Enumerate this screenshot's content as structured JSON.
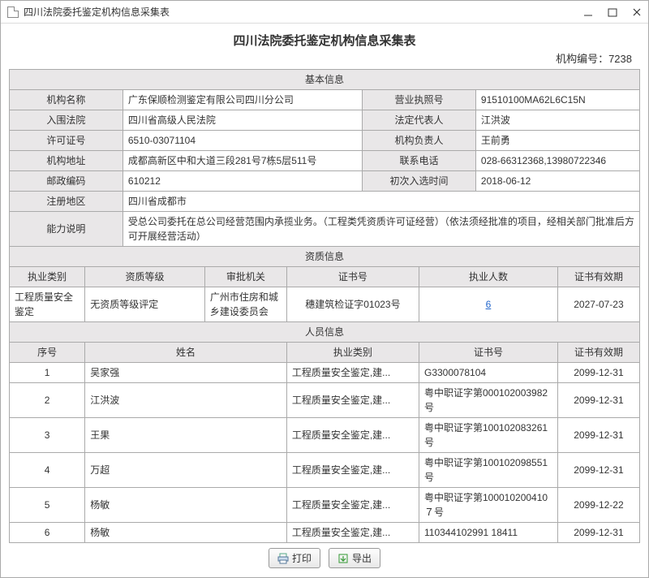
{
  "window": {
    "title": "四川法院委托鉴定机构信息采集表"
  },
  "header": {
    "main_title": "四川法院委托鉴定机构信息采集表",
    "org_code_label": "机构编号：",
    "org_code": "7238"
  },
  "sections": {
    "basic": "基本信息",
    "qual": "资质信息",
    "person": "人员信息"
  },
  "basic": {
    "org_name_label": "机构名称",
    "org_name": "广东保顺检测鉴定有限公司四川分公司",
    "license_no_label": "营业执照号",
    "license_no": "91510100MA62L6C15N",
    "court_label": "入围法院",
    "court": "四川省高级人民法院",
    "legal_rep_label": "法定代表人",
    "legal_rep": "江洪波",
    "permit_no_label": "许可证号",
    "permit_no": "6510-03071104",
    "org_head_label": "机构负责人",
    "org_head": "王前勇",
    "address_label": "机构地址",
    "address": "成都高新区中和大道三段281号7栋5层511号",
    "phone_label": "联系电话",
    "phone": "028-66312368,13980722346",
    "postal_label": "邮政编码",
    "postal": "610212",
    "first_sel_label": "初次入选时间",
    "first_sel": "2018-06-12",
    "reg_area_label": "注册地区",
    "reg_area": "四川省成都市",
    "capability_label": "能力说明",
    "capability": "受总公司委托在总公司经营范围内承揽业务。（工程类凭资质许可证经营）（依法须经批准的项目，经相关部门批准后方可开展经营活动）"
  },
  "qual": {
    "headers": {
      "type": "执业类别",
      "level": "资质等级",
      "approver": "审批机关",
      "cert_no": "证书号",
      "count": "执业人数",
      "expiry": "证书有效期"
    },
    "row": {
      "type": "工程质量安全鉴定",
      "level": "无资质等级评定",
      "approver": "广州市住房和城乡建设委员会",
      "cert_no": "穗建筑检证字01023号",
      "count": "6",
      "expiry": "2027-07-23"
    }
  },
  "person": {
    "headers": {
      "idx": "序号",
      "name": "姓名",
      "type": "执业类别",
      "cert_no": "证书号",
      "expiry": "证书有效期"
    },
    "rows": [
      {
        "idx": "1",
        "name": "吴家强",
        "type": "工程质量安全鉴定,建...",
        "cert_no": "G3300078104",
        "expiry": "2099-12-31"
      },
      {
        "idx": "2",
        "name": "江洪波",
        "type": "工程质量安全鉴定,建...",
        "cert_no": "粤中职证字第000102003982号",
        "expiry": "2099-12-31"
      },
      {
        "idx": "3",
        "name": "王果",
        "type": "工程质量安全鉴定,建...",
        "cert_no": "粤中职证字第100102083261号",
        "expiry": "2099-12-31"
      },
      {
        "idx": "4",
        "name": "万超",
        "type": "工程质量安全鉴定,建...",
        "cert_no": "粤中职证字第100102098551号",
        "expiry": "2099-12-31"
      },
      {
        "idx": "5",
        "name": "杨敏",
        "type": "工程质量安全鉴定,建...",
        "cert_no": "粤中职证字第100010200410７号",
        "expiry": "2099-12-22"
      },
      {
        "idx": "6",
        "name": "杨敏",
        "type": "工程质量安全鉴定,建...",
        "cert_no": "110344102991 18411",
        "expiry": "2099-12-31"
      }
    ]
  },
  "footer": {
    "print": "打印",
    "export": "导出"
  }
}
